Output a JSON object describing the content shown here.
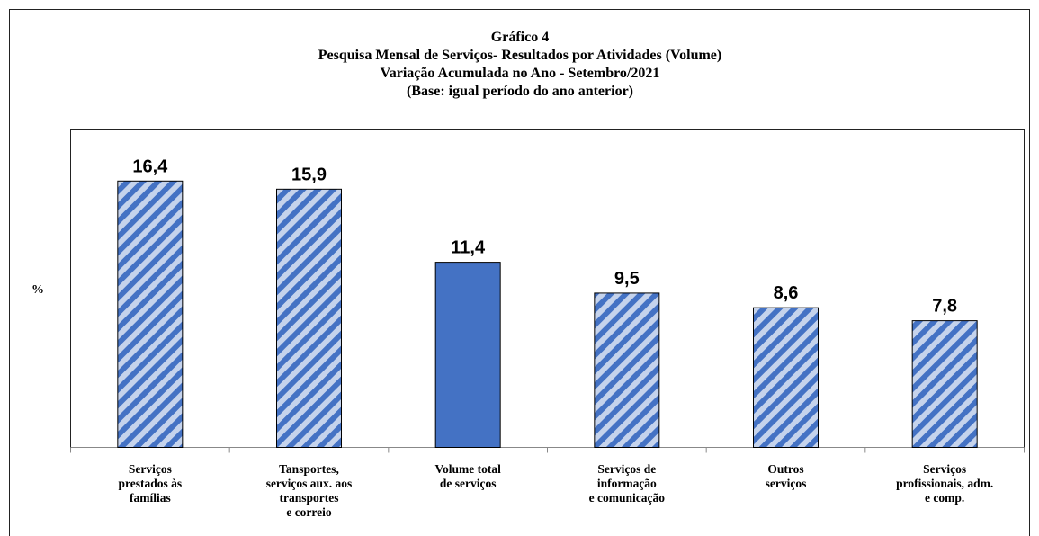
{
  "chart_data": {
    "type": "bar",
    "title": [
      "Gráfico 4",
      "Pesquisa Mensal de Serviços- Resultados por Atividades (Volume)",
      "Variação Acumulada no Ano - Setembro/2021",
      "(Base: igual período  do ano anterior)"
    ],
    "y_label": "%",
    "categories": [
      [
        "Serviços",
        "prestados às",
        "famílias"
      ],
      [
        "Tansportes,",
        "serviços aux. aos",
        "transportes",
        "e correio"
      ],
      [
        "Volume total",
        "de serviços"
      ],
      [
        "Serviços de",
        "informação",
        "e comunicação"
      ],
      [
        "Outros",
        "serviços"
      ],
      [
        "Serviços",
        "profissionais, adm.",
        "e comp."
      ]
    ],
    "values": [
      16.4,
      15.9,
      11.4,
      9.5,
      8.6,
      7.8
    ],
    "value_labels": [
      "16,4",
      "15,9",
      "11,4",
      "9,5",
      "8,6",
      "7,8"
    ],
    "color": "#4472c4",
    "hatched": [
      true,
      true,
      false,
      true,
      true,
      true
    ],
    "ylim": [
      0,
      19.6
    ]
  }
}
